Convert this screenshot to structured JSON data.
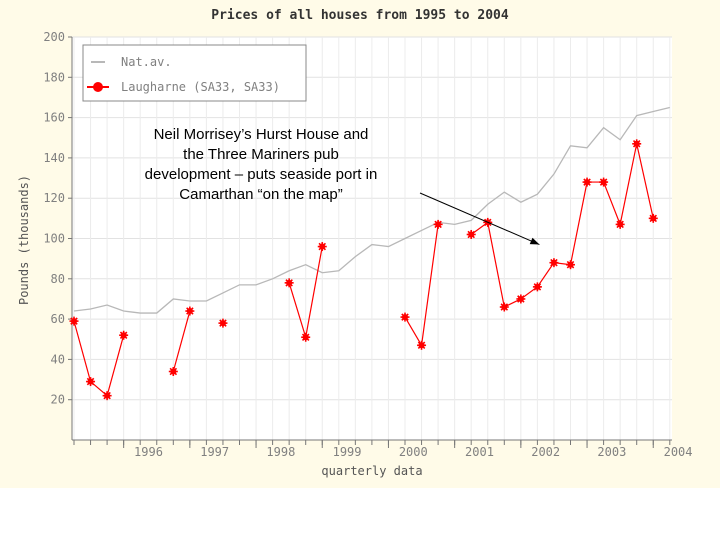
{
  "chart_data": {
    "type": "line",
    "title": "Prices of all houses from 1995 to 2004",
    "xlabel": "quarterly data",
    "ylabel": "Pounds (thousands)",
    "ylim": [
      0,
      200
    ],
    "yticks": [
      20,
      40,
      60,
      80,
      100,
      120,
      140,
      160,
      180,
      200
    ],
    "year_labels": [
      "1996",
      "1997",
      "1998",
      "1999",
      "2000",
      "2001",
      "2002",
      "2003",
      "2004"
    ],
    "grid": true,
    "legend_position": "top-left",
    "x": [
      "1995 Q2",
      "1995 Q3",
      "1995 Q4",
      "1996 Q1",
      "1996 Q2",
      "1996 Q3",
      "1996 Q4",
      "1997 Q1",
      "1997 Q2",
      "1997 Q3",
      "1997 Q4",
      "1998 Q1",
      "1998 Q2",
      "1998 Q3",
      "1998 Q4",
      "1999 Q1",
      "1999 Q2",
      "1999 Q3",
      "1999 Q4",
      "2000 Q1",
      "2000 Q2",
      "2000 Q3",
      "2000 Q4",
      "2001 Q1",
      "2001 Q2",
      "2001 Q3",
      "2001 Q4",
      "2002 Q1",
      "2002 Q2",
      "2002 Q3",
      "2002 Q4",
      "2003 Q1",
      "2003 Q2",
      "2003 Q3",
      "2003 Q4",
      "2004 Q1",
      "2004 Q2"
    ],
    "series": [
      {
        "name": "Nat.av.",
        "color": "#b8b8b8",
        "values": [
          64,
          65,
          67,
          64,
          63,
          63,
          70,
          69,
          69,
          73,
          77,
          77,
          80,
          84,
          87,
          83,
          84,
          91,
          97,
          96,
          100,
          104,
          108,
          107,
          109,
          117,
          123,
          118,
          122,
          132,
          146,
          145,
          155,
          149,
          161,
          163,
          165
        ]
      },
      {
        "name": "Laugharne (SA33, SA33)",
        "color": "#ff0000",
        "values": [
          59,
          29,
          22,
          52,
          null,
          null,
          34,
          64,
          null,
          58,
          null,
          null,
          null,
          78,
          51,
          96,
          null,
          null,
          null,
          null,
          61,
          47,
          107,
          null,
          102,
          108,
          66,
          70,
          76,
          88,
          87,
          128,
          128,
          107,
          147,
          110,
          null
        ]
      }
    ],
    "annotation": {
      "text_lines": [
        "Neil Morrisey’s Hurst House and",
        "the Three Mariners pub",
        "development – puts seaside port in",
        "Camarthan “on the map”"
      ],
      "points_to": {
        "x": "2002 Q2",
        "y": 98
      }
    }
  }
}
